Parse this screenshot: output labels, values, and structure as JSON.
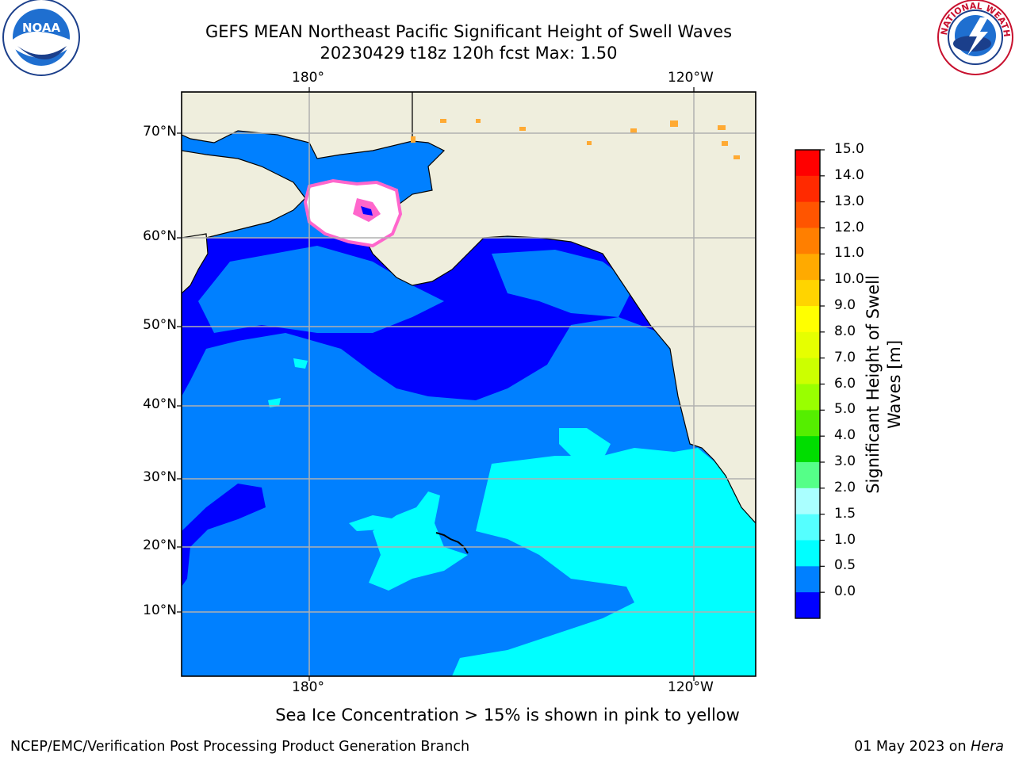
{
  "title": {
    "line1": "GEFS MEAN Northeast Pacific Significant Height of Swell Waves",
    "line2": "20230429 t18z 120h fcst   Max: 1.50"
  },
  "axes": {
    "x_ticks_top": [
      "180°",
      "120°W"
    ],
    "x_ticks_bottom": [
      "180°",
      "120°W"
    ],
    "y_ticks": [
      "70°N",
      "60°N",
      "50°N",
      "40°N",
      "30°N",
      "20°N",
      "10°N"
    ]
  },
  "colorbar": {
    "label_line1": "Significant Height of Swell",
    "label_line2": "Waves [m]",
    "ticks": [
      "15.0",
      "14.0",
      "13.0",
      "12.0",
      "11.0",
      "10.0",
      "9.0",
      "8.0",
      "7.0",
      "6.0",
      "5.0",
      "4.0",
      "3.0",
      "2.0",
      "1.5",
      "1.0",
      "0.5",
      "0.0"
    ],
    "colors_top_to_bottom": [
      "#ff0000",
      "#ff2a00",
      "#ff5500",
      "#ff7f00",
      "#ffaa00",
      "#ffd400",
      "#ffff00",
      "#e6ff00",
      "#ccff00",
      "#99ff00",
      "#55ee00",
      "#00dd00",
      "#55ff88",
      "#aaffff",
      "#55ffff",
      "#00ffff",
      "#0080ff",
      "#0000ff"
    ]
  },
  "colors": {
    "land": "#efeedd",
    "ocean_high": "#00ffff",
    "ocean_mid": "#0080ff",
    "ocean_low": "#0000ff",
    "ice_pink": "#ff66cc",
    "ice_orange": "#ffaa33",
    "grid": "#b0b0b0"
  },
  "note": "Sea Ice Concentration > 15% is shown in pink to yellow",
  "footer": {
    "left": "NCEP/EMC/Verification Post Processing Product Generation Branch",
    "right_prefix": "01 May 2023 on ",
    "right_italic": "Hera"
  },
  "logos": {
    "noaa": "NOAA",
    "nws_ring": "NATIONAL WEATHER SERVICE"
  }
}
